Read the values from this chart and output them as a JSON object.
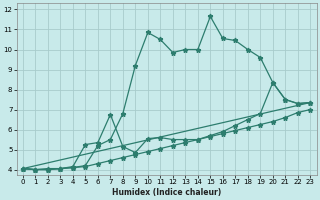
{
  "line1_x": [
    0,
    1,
    2,
    3,
    4,
    5,
    6,
    7,
    8,
    9,
    10,
    11,
    12,
    13,
    14,
    15,
    16,
    17,
    18,
    19,
    20,
    21,
    22,
    23
  ],
  "line1_y": [
    4.05,
    4.0,
    4.0,
    4.05,
    4.1,
    4.2,
    5.2,
    5.5,
    6.8,
    9.2,
    10.85,
    10.5,
    9.85,
    10.0,
    10.0,
    11.65,
    10.55,
    10.45,
    10.0,
    9.6,
    8.35,
    7.5,
    7.3,
    7.35
  ],
  "line2_x": [
    0,
    1,
    2,
    3,
    4,
    5,
    6,
    7,
    8,
    9,
    10,
    11,
    12,
    13,
    14,
    15,
    16,
    17,
    18,
    19,
    20,
    21,
    22,
    23
  ],
  "line2_y": [
    4.05,
    4.0,
    4.05,
    4.05,
    4.15,
    5.25,
    5.35,
    6.75,
    5.15,
    4.85,
    5.55,
    5.6,
    5.5,
    5.5,
    5.5,
    5.7,
    5.9,
    6.2,
    6.5,
    6.8,
    8.35,
    7.5,
    7.3,
    7.35
  ],
  "line3_x": [
    0,
    1,
    2,
    3,
    4,
    5,
    6,
    7,
    8,
    9,
    10,
    11,
    12,
    13,
    14,
    15,
    16,
    17,
    18,
    19,
    20,
    21,
    22,
    23
  ],
  "line3_y": [
    4.05,
    4.0,
    4.0,
    4.05,
    4.1,
    4.15,
    4.3,
    4.45,
    4.6,
    4.75,
    4.9,
    5.05,
    5.2,
    5.35,
    5.5,
    5.65,
    5.8,
    5.95,
    6.1,
    6.25,
    6.4,
    6.6,
    6.85,
    7.0
  ],
  "line4_x": [
    0,
    23
  ],
  "line4_y": [
    4.05,
    7.35
  ],
  "line_color": "#2d7d6e",
  "bg_color": "#c8eaea",
  "grid_color": "#a8cccc",
  "xlabel": "Humidex (Indice chaleur)",
  "xlim": [
    -0.5,
    23.5
  ],
  "ylim": [
    3.75,
    12.3
  ],
  "xticks": [
    0,
    1,
    2,
    3,
    4,
    5,
    6,
    7,
    8,
    9,
    10,
    11,
    12,
    13,
    14,
    15,
    16,
    17,
    18,
    19,
    20,
    21,
    22,
    23
  ],
  "yticks": [
    4,
    5,
    6,
    7,
    8,
    9,
    10,
    11,
    12
  ],
  "markersize": 3.5
}
